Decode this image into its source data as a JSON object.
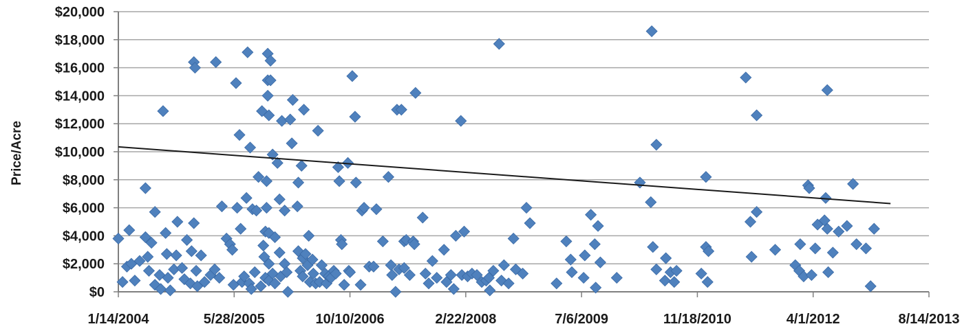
{
  "chart_data": {
    "type": "scatter",
    "title": "",
    "xlabel": "",
    "ylabel": "Price/Acre",
    "x_axis": {
      "type": "date",
      "min": "1/14/2004",
      "max": "8/14/2013",
      "tick_labels": [
        "1/14/2004",
        "5/28/2005",
        "10/10/2006",
        "2/22/2008",
        "7/6/2009",
        "11/18/2010",
        "4/1/2012",
        "8/14/2013"
      ]
    },
    "y_axis": {
      "min": 0,
      "max": 20000,
      "tick_labels": [
        "$0",
        "$2,000",
        "$4,000",
        "$6,000",
        "$8,000",
        "$10,000",
        "$12,000",
        "$14,000",
        "$16,000",
        "$18,000",
        "$20,000"
      ]
    },
    "grid": true,
    "marker_color": "#4F81BD",
    "trendline": {
      "type": "linear",
      "color": "#1a1a1a",
      "points": [
        [
          "1/14/2004",
          10350
        ],
        [
          "3/1/2013",
          6300
        ]
      ]
    },
    "points": [
      [
        "1/14/2004",
        3800
      ],
      [
        "2/1/2004",
        700
      ],
      [
        "2/20/2004",
        1800
      ],
      [
        "3/1/2004",
        4400
      ],
      [
        "3/10/2004",
        2000
      ],
      [
        "3/25/2004",
        800
      ],
      [
        "4/15/2004",
        2200
      ],
      [
        "5/10/2004",
        7400
      ],
      [
        "5/10/2004",
        3900
      ],
      [
        "5/20/2004",
        2500
      ],
      [
        "5/25/2004",
        1500
      ],
      [
        "6/5/2004",
        3500
      ],
      [
        "6/20/2004",
        5700
      ],
      [
        "6/20/2004",
        500
      ],
      [
        "7/10/2004",
        1200
      ],
      [
        "7/15/2004",
        200
      ],
      [
        "7/25/2004",
        12900
      ],
      [
        "8/5/2004",
        4200
      ],
      [
        "8/10/2004",
        2700
      ],
      [
        "8/15/2004",
        1000
      ],
      [
        "8/25/2004",
        100
      ],
      [
        "9/10/2004",
        1600
      ],
      [
        "9/20/2004",
        2600
      ],
      [
        "9/25/2004",
        5000
      ],
      [
        "10/15/2004",
        1700
      ],
      [
        "10/25/2004",
        900
      ],
      [
        "11/5/2004",
        3700
      ],
      [
        "11/20/2004",
        600
      ],
      [
        "11/25/2004",
        2900
      ],
      [
        "12/5/2004",
        16400
      ],
      [
        "12/10/2004",
        16000
      ],
      [
        "12/5/2004",
        4900
      ],
      [
        "12/15/2004",
        1500
      ],
      [
        "12/20/2004",
        400
      ],
      [
        "1/5/2005",
        2600
      ],
      [
        "1/20/2005",
        700
      ],
      [
        "2/15/2005",
        1200
      ],
      [
        "3/5/2005",
        1600
      ],
      [
        "3/10/2005",
        16400
      ],
      [
        "3/25/2005",
        1000
      ],
      [
        "4/5/2005",
        6100
      ],
      [
        "4/25/2005",
        3800
      ],
      [
        "5/10/2005",
        3400
      ],
      [
        "5/20/2005",
        3000
      ],
      [
        "5/25/2005",
        500
      ],
      [
        "6/5/2005",
        14900
      ],
      [
        "6/10/2005",
        6000
      ],
      [
        "6/20/2005",
        11200
      ],
      [
        "6/25/2005",
        4500
      ],
      [
        "7/1/2005",
        700
      ],
      [
        "7/10/2005",
        1100
      ],
      [
        "7/20/2005",
        6700
      ],
      [
        "7/25/2005",
        17100
      ],
      [
        "8/1/2005",
        600
      ],
      [
        "8/5/2005",
        10300
      ],
      [
        "8/10/2005",
        200
      ],
      [
        "8/15/2005",
        5900
      ],
      [
        "8/25/2005",
        1400
      ],
      [
        "9/1/2005",
        5800
      ],
      [
        "9/10/2005",
        8200
      ],
      [
        "9/20/2005",
        400
      ],
      [
        "9/25/2005",
        12900
      ],
      [
        "10/1/2005",
        3300
      ],
      [
        "10/5/2005",
        2500
      ],
      [
        "10/10/2005",
        4300
      ],
      [
        "10/10/2005",
        1000
      ],
      [
        "10/15/2005",
        7900
      ],
      [
        "10/15/2005",
        6000
      ],
      [
        "10/20/2005",
        15100
      ],
      [
        "10/20/2005",
        17000
      ],
      [
        "10/20/2005",
        14000
      ],
      [
        "10/25/2005",
        12600
      ],
      [
        "10/25/2005",
        4200
      ],
      [
        "10/25/2005",
        2000
      ],
      [
        "10/25/2005",
        800
      ],
      [
        "11/1/2005",
        16500
      ],
      [
        "11/1/2005",
        15100
      ],
      [
        "11/10/2005",
        9800
      ],
      [
        "11/10/2005",
        1300
      ],
      [
        "11/20/2005",
        3900
      ],
      [
        "11/20/2005",
        600
      ],
      [
        "12/1/2005",
        9200
      ],
      [
        "12/10/2005",
        6600
      ],
      [
        "12/10/2005",
        2800
      ],
      [
        "12/15/2005",
        1100
      ],
      [
        "12/20/2005",
        12200
      ],
      [
        "1/1/2006",
        5800
      ],
      [
        "1/1/2006",
        2000
      ],
      [
        "1/10/2006",
        1400
      ],
      [
        "1/15/2006",
        0
      ],
      [
        "1/25/2006",
        12300
      ],
      [
        "2/1/2006",
        10600
      ],
      [
        "2/5/2006",
        13700
      ],
      [
        "2/25/2006",
        6100
      ],
      [
        "3/1/2006",
        7800
      ],
      [
        "3/1/2006",
        2900
      ],
      [
        "3/10/2006",
        1500
      ],
      [
        "3/15/2006",
        9000
      ],
      [
        "3/20/2006",
        2400
      ],
      [
        "3/20/2006",
        1100
      ],
      [
        "3/25/2006",
        13000
      ],
      [
        "4/1/2006",
        2700
      ],
      [
        "4/10/2006",
        1900
      ],
      [
        "4/15/2006",
        4000
      ],
      [
        "4/20/2006",
        700
      ],
      [
        "5/1/2006",
        2300
      ],
      [
        "5/5/2006",
        1300
      ],
      [
        "5/15/2006",
        600
      ],
      [
        "5/25/2006",
        11500
      ],
      [
        "6/1/2006",
        700
      ],
      [
        "6/10/2006",
        1900
      ],
      [
        "6/25/2006",
        1300
      ],
      [
        "7/1/2006",
        600
      ],
      [
        "7/10/2006",
        1100
      ],
      [
        "7/20/2006",
        1000
      ],
      [
        "8/1/2006",
        1500
      ],
      [
        "8/10/2006",
        1300
      ],
      [
        "8/20/2006",
        8900
      ],
      [
        "8/25/2006",
        7900
      ],
      [
        "9/1/2006",
        3700
      ],
      [
        "9/5/2006",
        3400
      ],
      [
        "9/15/2006",
        500
      ],
      [
        "10/1/2006",
        9200
      ],
      [
        "10/5/2006",
        1500
      ],
      [
        "10/10/2006",
        1400
      ],
      [
        "10/20/2006",
        15400
      ],
      [
        "11/1/2006",
        12500
      ],
      [
        "11/5/2006",
        7800
      ],
      [
        "11/25/2006",
        500
      ],
      [
        "12/1/2006",
        5800
      ],
      [
        "12/10/2006",
        6000
      ],
      [
        "1/1/2007",
        1800
      ],
      [
        "1/20/2007",
        1800
      ],
      [
        "2/1/2007",
        5900
      ],
      [
        "3/1/2007",
        3600
      ],
      [
        "3/25/2007",
        8200
      ],
      [
        "4/5/2007",
        1900
      ],
      [
        "4/10/2007",
        1200
      ],
      [
        "4/25/2007",
        0
      ],
      [
        "5/1/2007",
        13000
      ],
      [
        "5/10/2007",
        1600
      ],
      [
        "5/20/2007",
        13000
      ],
      [
        "6/1/2007",
        3600
      ],
      [
        "6/1/2007",
        1700
      ],
      [
        "6/10/2007",
        3700
      ],
      [
        "6/25/2007",
        1200
      ],
      [
        "7/10/2007",
        3600
      ],
      [
        "7/15/2007",
        3400
      ],
      [
        "7/20/2007",
        14200
      ],
      [
        "8/20/2007",
        5300
      ],
      [
        "9/1/2007",
        1300
      ],
      [
        "9/15/2007",
        600
      ],
      [
        "10/1/2007",
        2200
      ],
      [
        "10/20/2007",
        1000
      ],
      [
        "11/20/2007",
        3000
      ],
      [
        "12/1/2007",
        700
      ],
      [
        "12/20/2007",
        1200
      ],
      [
        "1/1/2008",
        200
      ],
      [
        "1/10/2008",
        4000
      ],
      [
        "2/1/2008",
        12200
      ],
      [
        "2/5/2008",
        1200
      ],
      [
        "2/15/2008",
        4300
      ],
      [
        "3/1/2008",
        1100
      ],
      [
        "3/20/2008",
        1300
      ],
      [
        "4/10/2008",
        1200
      ],
      [
        "5/1/2008",
        700
      ],
      [
        "5/20/2008",
        800
      ],
      [
        "6/1/2008",
        1000
      ],
      [
        "6/5/2008",
        100
      ],
      [
        "6/20/2008",
        1500
      ],
      [
        "7/15/2008",
        17700
      ],
      [
        "7/25/2008",
        800
      ],
      [
        "8/5/2008",
        1900
      ],
      [
        "8/25/2008",
        600
      ],
      [
        "9/15/2008",
        3800
      ],
      [
        "9/25/2008",
        1600
      ],
      [
        "10/25/2008",
        1300
      ],
      [
        "11/10/2008",
        6000
      ],
      [
        "11/25/2008",
        4900
      ],
      [
        "3/20/2009",
        600
      ],
      [
        "5/1/2009",
        3600
      ],
      [
        "5/20/2009",
        2300
      ],
      [
        "5/25/2009",
        1400
      ],
      [
        "7/15/2009",
        1000
      ],
      [
        "7/20/2009",
        2600
      ],
      [
        "8/15/2009",
        5500
      ],
      [
        "9/1/2009",
        3400
      ],
      [
        "9/5/2009",
        300
      ],
      [
        "9/15/2009",
        4700
      ],
      [
        "9/25/2009",
        2100
      ],
      [
        "12/5/2009",
        1000
      ],
      [
        "3/15/2010",
        7800
      ],
      [
        "5/1/2010",
        6400
      ],
      [
        "5/5/2010",
        18600
      ],
      [
        "5/10/2010",
        3200
      ],
      [
        "5/25/2010",
        10500
      ],
      [
        "5/25/2010",
        1600
      ],
      [
        "7/1/2010",
        800
      ],
      [
        "7/5/2010",
        2400
      ],
      [
        "7/25/2010",
        1400
      ],
      [
        "8/10/2010",
        700
      ],
      [
        "8/20/2010",
        1500
      ],
      [
        "12/5/2010",
        1300
      ],
      [
        "12/25/2010",
        8200
      ],
      [
        "12/25/2010",
        3200
      ],
      [
        "1/1/2011",
        700
      ],
      [
        "1/5/2011",
        2900
      ],
      [
        "6/15/2011",
        15300
      ],
      [
        "7/5/2011",
        5000
      ],
      [
        "7/10/2011",
        2500
      ],
      [
        "8/1/2011",
        12600
      ],
      [
        "8/1/2011",
        5700
      ],
      [
        "10/20/2011",
        3000
      ],
      [
        "1/15/2012",
        1900
      ],
      [
        "2/1/2012",
        1500
      ],
      [
        "2/5/2012",
        3400
      ],
      [
        "2/20/2012",
        1100
      ],
      [
        "3/10/2012",
        7600
      ],
      [
        "3/15/2012",
        7400
      ],
      [
        "3/25/2012",
        1200
      ],
      [
        "4/10/2012",
        3100
      ],
      [
        "4/20/2012",
        4800
      ],
      [
        "5/20/2012",
        5100
      ],
      [
        "5/25/2012",
        6700
      ],
      [
        "6/1/2012",
        14400
      ],
      [
        "6/1/2012",
        4500
      ],
      [
        "6/5/2012",
        1400
      ],
      [
        "6/25/2012",
        2800
      ],
      [
        "7/20/2012",
        4300
      ],
      [
        "8/25/2012",
        4700
      ],
      [
        "9/20/2012",
        7700
      ],
      [
        "10/5/2012",
        3400
      ],
      [
        "11/15/2012",
        3100
      ],
      [
        "12/5/2012",
        400
      ],
      [
        "12/20/2012",
        4500
      ]
    ]
  }
}
